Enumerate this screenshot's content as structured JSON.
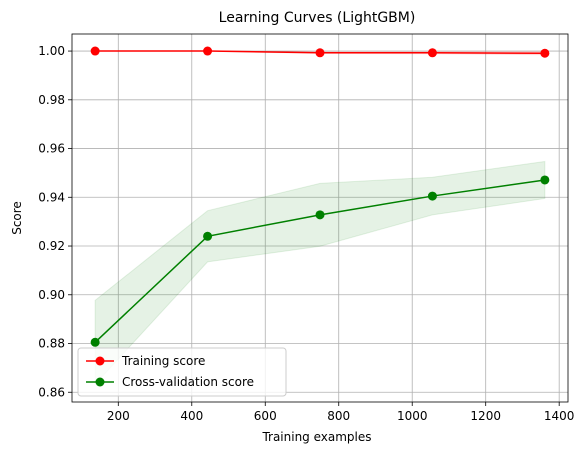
{
  "chart_data": {
    "type": "line",
    "title": "Learning Curves (LightGBM)",
    "xlabel": "Training examples",
    "ylabel": "Score",
    "xlim": [
      74,
      1424
    ],
    "ylim": [
      0.856,
      1.007
    ],
    "x": [
      137,
      443,
      749,
      1055,
      1361
    ],
    "xticks": [
      200,
      400,
      600,
      800,
      1000,
      1200,
      1400
    ],
    "yticks": [
      0.86,
      0.88,
      0.9,
      0.92,
      0.94,
      0.96,
      0.98,
      1.0
    ],
    "ytick_labels": [
      "0.86",
      "0.88",
      "0.90",
      "0.92",
      "0.94",
      "0.96",
      "0.98",
      "1.00"
    ],
    "grid": true,
    "legend_position": "lower-left",
    "series": [
      {
        "name": "Training score",
        "color": "#ff0000",
        "values": [
          1.0,
          1.0,
          0.9993,
          0.9993,
          0.9991
        ],
        "band_lower": [
          1.0,
          1.0,
          0.999,
          0.9989,
          0.9985
        ],
        "band_upper": [
          1.0,
          1.0,
          0.9996,
          0.9997,
          0.9997
        ]
      },
      {
        "name": "Cross-validation score",
        "color": "#008000",
        "values": [
          0.8805,
          0.924,
          0.9328,
          0.9405,
          0.9471
        ],
        "band_lower": [
          0.8633,
          0.9135,
          0.9199,
          0.9328,
          0.9395
        ],
        "band_upper": [
          0.8977,
          0.9345,
          0.9457,
          0.9482,
          0.9547
        ]
      }
    ]
  }
}
